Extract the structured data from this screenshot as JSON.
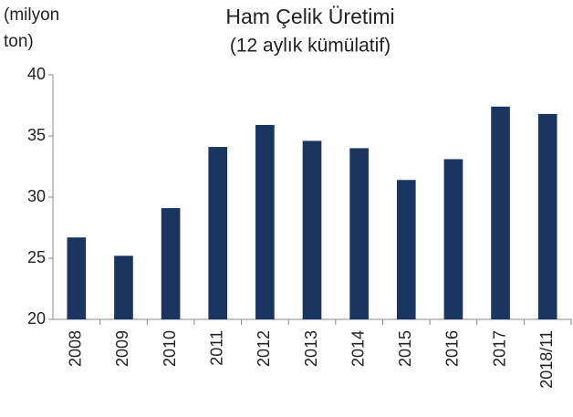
{
  "chart_data": {
    "type": "bar",
    "title": "Ham Çelik Üretimi",
    "subtitle": "(12 aylık kümülatif)",
    "y_label": "(milyon ton)",
    "categories": [
      "2008",
      "2009",
      "2010",
      "2011",
      "2012",
      "2013",
      "2014",
      "2015",
      "2016",
      "2017",
      "2018/11"
    ],
    "values": [
      26.7,
      25.2,
      29.1,
      34.1,
      35.9,
      34.6,
      34.0,
      31.4,
      33.1,
      37.4,
      36.8
    ],
    "color": "#1a3560",
    "ylim": [
      20,
      40
    ],
    "yticks": [
      20,
      25,
      30,
      35,
      40
    ],
    "grid": false
  }
}
